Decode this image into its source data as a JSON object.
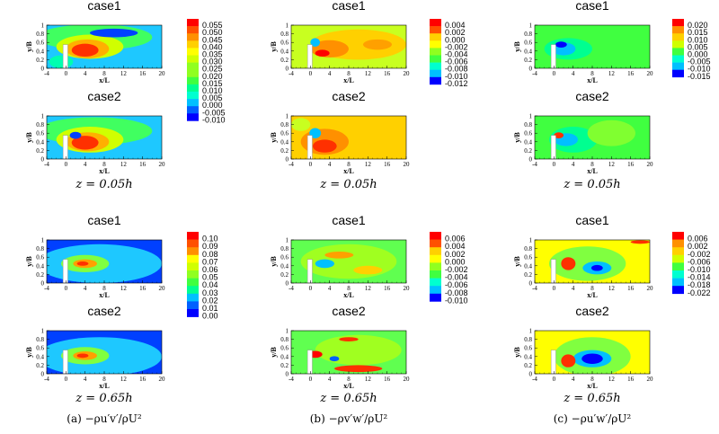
{
  "chart_data": {
    "type": "heatmap",
    "x_axis": {
      "label": "x/L",
      "range": [
        -4,
        20
      ],
      "ticks": [
        "-4",
        "0",
        "4",
        "8",
        "12",
        "16",
        "20"
      ]
    },
    "y_axis": {
      "label": "y/B",
      "range": [
        0,
        1
      ],
      "ticks": [
        "0",
        "0.2",
        "0.4",
        "0.6",
        "0.8",
        "1"
      ]
    },
    "palette": [
      "#0000ff",
      "#0060ff",
      "#00c0ff",
      "#00ffd0",
      "#00ff90",
      "#40ff40",
      "#90ff20",
      "#d0ff00",
      "#ffff00",
      "#ffd000",
      "#ff9000",
      "#ff5000",
      "#ff0000"
    ],
    "columns": [
      {
        "caption": "(a) −ρu′v′/ρU²",
        "colorbar_top": [
          "0.055",
          "0.050",
          "0.045",
          "0.040",
          "0.035",
          "0.030",
          "0.025",
          "0.020",
          "0.015",
          "0.010",
          "0.005",
          "0.000",
          "-0.005",
          "-0.010"
        ],
        "colorbar_bottom": [
          "0.10",
          "0.09",
          "0.08",
          "0.07",
          "0.06",
          "0.05",
          "0.04",
          "0.03",
          "0.02",
          "0.01",
          "0.00"
        ]
      },
      {
        "caption": "(b) −ρv′w′/ρU²",
        "colorbar_top": [
          "0.004",
          "0.002",
          "0.000",
          "-0.002",
          "-0.004",
          "-0.006",
          "-0.008",
          "-0.010",
          "-0.012"
        ],
        "colorbar_bottom": [
          "0.006",
          "0.004",
          "0.002",
          "0.000",
          "-0.002",
          "-0.004",
          "-0.006",
          "-0.008",
          "-0.010"
        ]
      },
      {
        "caption": "(c) −ρu′w′/ρU²",
        "colorbar_top": [
          "0.020",
          "0.015",
          "0.010",
          "0.005",
          "0.000",
          "-0.005",
          "-0.010",
          "-0.015"
        ],
        "colorbar_bottom": [
          "0.006",
          "0.002",
          "-0.002",
          "-0.006",
          "-0.010",
          "-0.014",
          "-0.018",
          "-0.022"
        ]
      }
    ],
    "rows": [
      {
        "heights": "z = 0.05h",
        "cases": [
          "case1",
          "case2"
        ]
      },
      {
        "heights": "z = 0.65h",
        "cases": [
          "case1",
          "case2"
        ]
      }
    ],
    "panels": [
      {
        "col": 0,
        "row": 0,
        "case": 0,
        "background": "#1ec8ff",
        "blobs": [
          {
            "cx": 6,
            "cy": 0.72,
            "rx": 12,
            "ry": 0.3,
            "color": "#40ff60"
          },
          {
            "cx": 5,
            "cy": 0.5,
            "rx": 7,
            "ry": 0.28,
            "color": "#d0ff00"
          },
          {
            "cx": 4.5,
            "cy": 0.45,
            "rx": 4.5,
            "ry": 0.22,
            "color": "#ffb000"
          },
          {
            "cx": 4,
            "cy": 0.42,
            "rx": 2.8,
            "ry": 0.15,
            "color": "#ff3000"
          },
          {
            "cx": 10,
            "cy": 0.82,
            "rx": 5,
            "ry": 0.1,
            "color": "#0040ff"
          },
          {
            "cx": -1,
            "cy": 0.15,
            "rx": 2.5,
            "ry": 0.15,
            "color": "#00ffb0"
          }
        ]
      },
      {
        "col": 0,
        "row": 0,
        "case": 1,
        "background": "#1ec8ff",
        "blobs": [
          {
            "cx": 6,
            "cy": 0.65,
            "rx": 12,
            "ry": 0.32,
            "color": "#40ff60"
          },
          {
            "cx": 5,
            "cy": 0.45,
            "rx": 7,
            "ry": 0.3,
            "color": "#d0ff00"
          },
          {
            "cx": 4.5,
            "cy": 0.4,
            "rx": 4.5,
            "ry": 0.22,
            "color": "#ffb000"
          },
          {
            "cx": 4,
            "cy": 0.38,
            "rx": 2.8,
            "ry": 0.16,
            "color": "#ff3000"
          },
          {
            "cx": 2,
            "cy": 0.55,
            "rx": 1.2,
            "ry": 0.08,
            "color": "#0040ff"
          }
        ]
      },
      {
        "col": 1,
        "row": 0,
        "case": 0,
        "background": "#c8ff20",
        "blobs": [
          {
            "cx": 10,
            "cy": 0.55,
            "rx": 10,
            "ry": 0.35,
            "color": "#ffd000"
          },
          {
            "cx": 4,
            "cy": 0.45,
            "rx": 4,
            "ry": 0.2,
            "color": "#ff9000"
          },
          {
            "cx": 2.5,
            "cy": 0.35,
            "rx": 1.5,
            "ry": 0.08,
            "color": "#ff0000"
          },
          {
            "cx": 1,
            "cy": 0.6,
            "rx": 1,
            "ry": 0.1,
            "color": "#00c0ff"
          },
          {
            "cx": 14,
            "cy": 0.55,
            "rx": 3,
            "ry": 0.12,
            "color": "#ffa000"
          }
        ]
      },
      {
        "col": 1,
        "row": 0,
        "case": 1,
        "background": "#ffd000",
        "blobs": [
          {
            "cx": 3,
            "cy": 0.4,
            "rx": 5,
            "ry": 0.3,
            "color": "#ff9000"
          },
          {
            "cx": 3,
            "cy": 0.3,
            "rx": 2.5,
            "ry": 0.15,
            "color": "#ff3000"
          },
          {
            "cx": 1,
            "cy": 0.6,
            "rx": 1.2,
            "ry": 0.12,
            "color": "#00c0ff"
          },
          {
            "cx": -2,
            "cy": 0.8,
            "rx": 2,
            "ry": 0.15,
            "color": "#c8ff20"
          }
        ]
      },
      {
        "col": 2,
        "row": 0,
        "case": 0,
        "background": "#40ff40",
        "blobs": [
          {
            "cx": 3,
            "cy": 0.45,
            "rx": 5,
            "ry": 0.25,
            "color": "#00ff90"
          },
          {
            "cx": 2,
            "cy": 0.45,
            "rx": 2.5,
            "ry": 0.15,
            "color": "#00c0ff"
          },
          {
            "cx": 1.5,
            "cy": 0.55,
            "rx": 1.2,
            "ry": 0.07,
            "color": "#0000ff"
          }
        ]
      },
      {
        "col": 2,
        "row": 0,
        "case": 1,
        "background": "#40ff40",
        "blobs": [
          {
            "cx": 4,
            "cy": 0.45,
            "rx": 5,
            "ry": 0.3,
            "color": "#00ff90"
          },
          {
            "cx": 2.5,
            "cy": 0.45,
            "rx": 2.5,
            "ry": 0.15,
            "color": "#00c0ff"
          },
          {
            "cx": 1,
            "cy": 0.55,
            "rx": 1,
            "ry": 0.07,
            "color": "#ff3000"
          },
          {
            "cx": 12,
            "cy": 0.6,
            "rx": 5,
            "ry": 0.3,
            "color": "#80ff30"
          }
        ]
      },
      {
        "col": 0,
        "row": 1,
        "case": 0,
        "background": "#0040ff",
        "blobs": [
          {
            "cx": 7,
            "cy": 0.45,
            "rx": 13,
            "ry": 0.45,
            "color": "#1ec8ff"
          },
          {
            "cx": 4,
            "cy": 0.45,
            "rx": 5,
            "ry": 0.2,
            "color": "#80ff40"
          },
          {
            "cx": 4,
            "cy": 0.45,
            "rx": 2.5,
            "ry": 0.1,
            "color": "#ffa000"
          },
          {
            "cx": 3.5,
            "cy": 0.45,
            "rx": 1.2,
            "ry": 0.05,
            "color": "#ff3000"
          }
        ]
      },
      {
        "col": 0,
        "row": 1,
        "case": 1,
        "background": "#0040ff",
        "blobs": [
          {
            "cx": 7,
            "cy": 0.4,
            "rx": 13,
            "ry": 0.45,
            "color": "#1ec8ff"
          },
          {
            "cx": 4,
            "cy": 0.42,
            "rx": 5,
            "ry": 0.2,
            "color": "#80ff40"
          },
          {
            "cx": 4,
            "cy": 0.42,
            "rx": 2.5,
            "ry": 0.1,
            "color": "#ffa000"
          },
          {
            "cx": 3.5,
            "cy": 0.42,
            "rx": 1.2,
            "ry": 0.05,
            "color": "#ff3000"
          }
        ]
      },
      {
        "col": 1,
        "row": 1,
        "case": 0,
        "background": "#60ff50",
        "blobs": [
          {
            "cx": 8,
            "cy": 0.5,
            "rx": 10,
            "ry": 0.4,
            "color": "#a0ff20"
          },
          {
            "cx": 3,
            "cy": 0.45,
            "rx": 2,
            "ry": 0.1,
            "color": "#00c0ff"
          },
          {
            "cx": 6,
            "cy": 0.65,
            "rx": 3,
            "ry": 0.08,
            "color": "#ffa000"
          },
          {
            "cx": 12,
            "cy": 0.3,
            "rx": 3,
            "ry": 0.1,
            "color": "#ffd000"
          }
        ]
      },
      {
        "col": 1,
        "row": 1,
        "case": 1,
        "background": "#60ff50",
        "blobs": [
          {
            "cx": 10,
            "cy": 0.55,
            "rx": 9,
            "ry": 0.35,
            "color": "#a0ff20"
          },
          {
            "cx": 10,
            "cy": 0.12,
            "rx": 5,
            "ry": 0.08,
            "color": "#ff3000"
          },
          {
            "cx": 1,
            "cy": 0.45,
            "rx": 1.5,
            "ry": 0.08,
            "color": "#ff0000"
          },
          {
            "cx": 5,
            "cy": 0.35,
            "rx": 1,
            "ry": 0.06,
            "color": "#0060ff"
          },
          {
            "cx": 8,
            "cy": 0.8,
            "rx": 2,
            "ry": 0.05,
            "color": "#ff3000"
          }
        ]
      },
      {
        "col": 2,
        "row": 1,
        "case": 0,
        "background": "#ffff00",
        "blobs": [
          {
            "cx": 7,
            "cy": 0.45,
            "rx": 8,
            "ry": 0.4,
            "color": "#80ff40"
          },
          {
            "cx": 9,
            "cy": 0.35,
            "rx": 3,
            "ry": 0.15,
            "color": "#00c0ff"
          },
          {
            "cx": 9,
            "cy": 0.35,
            "rx": 1.2,
            "ry": 0.07,
            "color": "#0000ff"
          },
          {
            "cx": 3,
            "cy": 0.45,
            "rx": 1.5,
            "ry": 0.15,
            "color": "#ff3000"
          },
          {
            "cx": 18,
            "cy": 0.95,
            "rx": 2,
            "ry": 0.04,
            "color": "#ff3000"
          }
        ]
      },
      {
        "col": 2,
        "row": 1,
        "case": 1,
        "background": "#ffff00",
        "blobs": [
          {
            "cx": 8,
            "cy": 0.4,
            "rx": 8,
            "ry": 0.45,
            "color": "#80ff40"
          },
          {
            "cx": 8,
            "cy": 0.35,
            "rx": 4,
            "ry": 0.2,
            "color": "#00c0ff"
          },
          {
            "cx": 8,
            "cy": 0.35,
            "rx": 2.2,
            "ry": 0.12,
            "color": "#0000ff"
          },
          {
            "cx": 3,
            "cy": 0.3,
            "rx": 1.5,
            "ry": 0.15,
            "color": "#ff3000"
          }
        ]
      }
    ]
  }
}
